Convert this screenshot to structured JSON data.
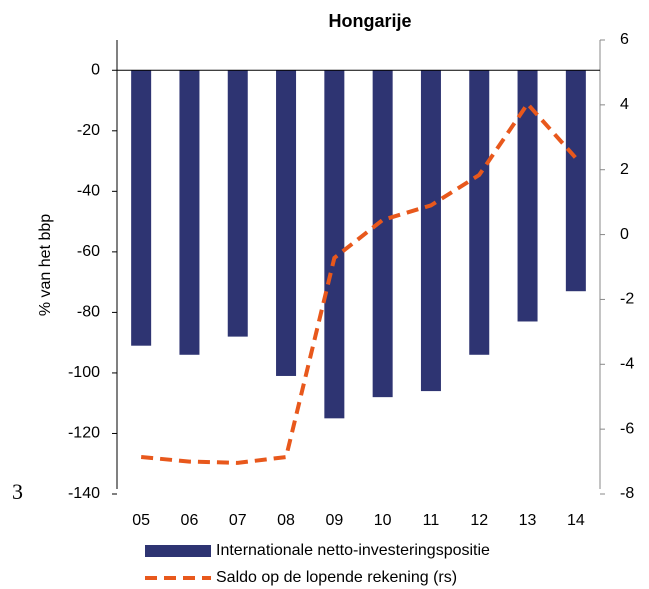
{
  "chart_data": {
    "type": "bar-line",
    "title": "Hongarije",
    "ylabel": "% van het bbp",
    "annotation": "3",
    "categories": [
      "05",
      "06",
      "07",
      "08",
      "09",
      "10",
      "11",
      "12",
      "13",
      "14"
    ],
    "series": [
      {
        "name": "Internationale netto-investeringspositie",
        "type": "bar",
        "color": "#2e3472",
        "values": [
          -91,
          -94,
          -88,
          -101,
          -115,
          -108,
          -106,
          -94,
          -83,
          -73
        ]
      },
      {
        "name": "Saldo op de lopende rekening (rs)",
        "type": "line",
        "axis": "y2",
        "color": "#e8581c",
        "dashed": true,
        "values": [
          -6.86,
          -7.0,
          -7.04,
          -6.86,
          -0.72,
          0.45,
          0.9,
          1.84,
          4.03,
          2.36
        ]
      }
    ],
    "ylim": [
      -140,
      10
    ],
    "yticks": [
      -140,
      -120,
      -100,
      -80,
      -60,
      -40,
      -20,
      0
    ],
    "y2lim": [
      -8,
      6
    ],
    "y2ticks": [
      -8,
      -6,
      -4,
      -2,
      0,
      2,
      4,
      6
    ],
    "grid": false
  }
}
